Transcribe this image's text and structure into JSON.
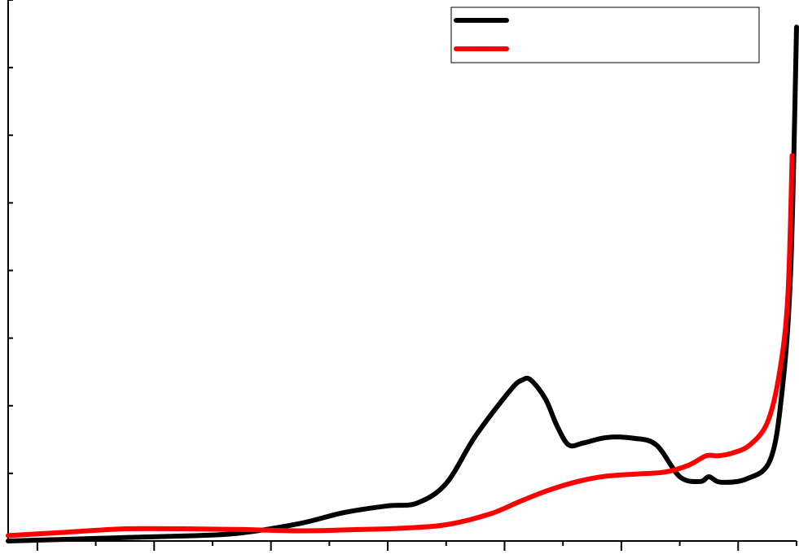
{
  "chart_data": {
    "type": "line",
    "title": "",
    "xlabel": "",
    "ylabel": "",
    "xlim": [
      0,
      27
    ],
    "ylim": [
      0,
      8
    ],
    "x_major_ticks": [
      1,
      5,
      9,
      13,
      17,
      21,
      25
    ],
    "x_minor_ticks": [
      3,
      7,
      11,
      15,
      19,
      23,
      27
    ],
    "y_ticks": [
      0,
      1,
      2,
      3,
      4,
      5,
      6,
      7,
      8
    ],
    "grid": false,
    "legend": {
      "position": "top-right",
      "entries": [
        {
          "color": "#000000"
        },
        {
          "color": "#ff0000"
        }
      ]
    },
    "series": [
      {
        "color": "#000000",
        "points": [
          [
            0,
            0.0
          ],
          [
            4,
            0.05
          ],
          [
            6.5,
            0.08
          ],
          [
            8,
            0.12
          ],
          [
            10,
            0.26
          ],
          [
            11.5,
            0.42
          ],
          [
            13,
            0.52
          ],
          [
            14,
            0.56
          ],
          [
            15,
            0.85
          ],
          [
            16,
            1.55
          ],
          [
            17.2,
            2.23
          ],
          [
            17.6,
            2.38
          ],
          [
            17.9,
            2.38
          ],
          [
            18.4,
            2.1
          ],
          [
            18.8,
            1.7
          ],
          [
            19.2,
            1.42
          ],
          [
            19.7,
            1.45
          ],
          [
            20.5,
            1.53
          ],
          [
            21.4,
            1.52
          ],
          [
            22.2,
            1.42
          ],
          [
            23,
            0.95
          ],
          [
            23.7,
            0.88
          ],
          [
            24.0,
            0.95
          ],
          [
            24.4,
            0.87
          ],
          [
            25.3,
            0.92
          ],
          [
            26.1,
            1.2
          ],
          [
            26.5,
            2.2
          ],
          [
            26.8,
            4.0
          ],
          [
            27.0,
            7.6
          ]
        ]
      },
      {
        "color": "#ff0000",
        "points": [
          [
            0,
            0.08
          ],
          [
            2,
            0.13
          ],
          [
            4,
            0.18
          ],
          [
            6,
            0.18
          ],
          [
            8,
            0.17
          ],
          [
            10,
            0.15
          ],
          [
            12,
            0.17
          ],
          [
            13.5,
            0.19
          ],
          [
            15,
            0.24
          ],
          [
            16.5,
            0.4
          ],
          [
            17.5,
            0.58
          ],
          [
            18.5,
            0.75
          ],
          [
            19.5,
            0.88
          ],
          [
            20.5,
            0.96
          ],
          [
            21.5,
            0.99
          ],
          [
            22.5,
            1.02
          ],
          [
            23.3,
            1.12
          ],
          [
            23.9,
            1.26
          ],
          [
            24.3,
            1.26
          ],
          [
            24.8,
            1.3
          ],
          [
            25.4,
            1.42
          ],
          [
            26.0,
            1.75
          ],
          [
            26.4,
            2.45
          ],
          [
            26.7,
            3.6
          ],
          [
            26.85,
            5.7
          ]
        ]
      }
    ]
  }
}
